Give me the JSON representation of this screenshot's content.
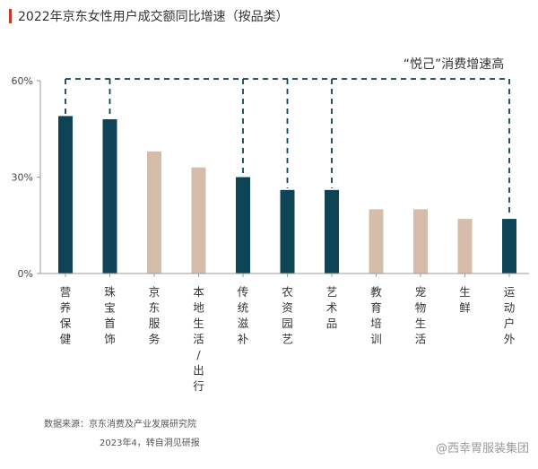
{
  "title": "2022年京东女性用户成交额同比增速（按品类）",
  "annotation": "“悦己”消费增速高",
  "source_line1": "数据来源：京东消费及产业发展研究院",
  "source_line2": "2023年4，转自洞见研报",
  "watermark": "@西幸胃服装集团",
  "colors": {
    "highlight": "#0f4457",
    "normal": "#d6bcab",
    "accent": "#c0392b",
    "dashed": "#0f4457",
    "axis": "#999999"
  },
  "chart_data": {
    "type": "bar",
    "categories": [
      "营养保健",
      "珠宝首饰",
      "京东服务",
      "本地生活/出行",
      "传统滋补",
      "农资园艺",
      "艺术品",
      "教育培训",
      "宠物生活",
      "生鲜",
      "运动户外"
    ],
    "values": [
      49,
      48,
      38,
      33,
      30,
      26,
      26,
      20,
      20,
      17,
      17
    ],
    "highlighted": [
      true,
      true,
      false,
      false,
      true,
      true,
      true,
      false,
      false,
      false,
      true
    ],
    "ylim": [
      0,
      60
    ],
    "yticks": [
      "0%",
      "30%",
      "60%"
    ],
    "ytick_values": [
      0,
      30,
      60
    ],
    "xlabel": "",
    "ylabel": ""
  }
}
